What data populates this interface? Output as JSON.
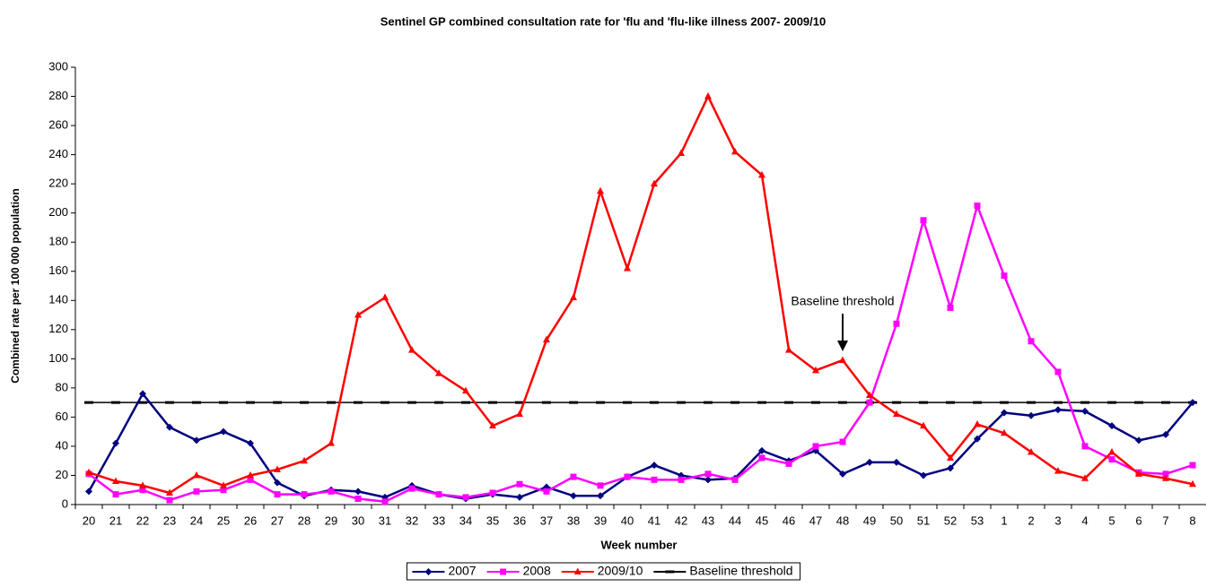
{
  "chart_data": {
    "type": "line",
    "title": "Sentinel GP combined consultation rate for 'flu and 'flu-like illness 2007- 2009/10",
    "x_label": "Week number",
    "y_label": "Combined rate per 100 000 population",
    "annotation": "Baseline threshold",
    "categories": [
      "20",
      "21",
      "22",
      "23",
      "24",
      "25",
      "26",
      "27",
      "28",
      "29",
      "30",
      "31",
      "32",
      "33",
      "34",
      "35",
      "36",
      "37",
      "38",
      "39",
      "40",
      "41",
      "42",
      "43",
      "44",
      "45",
      "46",
      "47",
      "48",
      "49",
      "50",
      "51",
      "52",
      "53",
      "1",
      "2",
      "3",
      "4",
      "5",
      "6",
      "7",
      "8"
    ],
    "series": [
      {
        "name": "2007",
        "color": "#000080",
        "marker": "diamond",
        "values": [
          9,
          42,
          76,
          53,
          44,
          50,
          42,
          15,
          6,
          10,
          9,
          5,
          13,
          7,
          4,
          7,
          5,
          12,
          6,
          6,
          19,
          27,
          20,
          17,
          18,
          37,
          30,
          37,
          21,
          29,
          29,
          20,
          25,
          45,
          63,
          61,
          65,
          64,
          54,
          44,
          48,
          70
        ]
      },
      {
        "name": "2008",
        "color": "#ff00ff",
        "marker": "square",
        "values": [
          21,
          7,
          10,
          3,
          9,
          10,
          17,
          7,
          7,
          9,
          4,
          2,
          11,
          7,
          5,
          8,
          14,
          9,
          19,
          13,
          19,
          17,
          17,
          21,
          17,
          32,
          28,
          40,
          43,
          70,
          124,
          195,
          135,
          205,
          157,
          112,
          91,
          40,
          31,
          22,
          21,
          27
        ]
      },
      {
        "name": "2009/10",
        "color": "#ff0000",
        "marker": "triangle",
        "values": [
          22,
          16,
          13,
          8,
          20,
          13,
          20,
          24,
          30,
          42,
          130,
          142,
          106,
          90,
          78,
          54,
          62,
          113,
          142,
          215,
          162,
          220,
          241,
          280,
          242,
          226,
          106,
          92,
          99,
          75,
          62,
          54,
          32,
          55,
          49,
          36,
          23,
          18,
          36,
          21,
          18,
          14
        ]
      }
    ],
    "threshold": {
      "name": "Baseline threshold",
      "value": 70,
      "color": "#000000"
    },
    "ylim": [
      0,
      300
    ],
    "yticks": [
      0,
      20,
      40,
      60,
      80,
      100,
      120,
      140,
      160,
      180,
      200,
      220,
      240,
      260,
      280,
      300
    ],
    "legend": "bottom"
  }
}
